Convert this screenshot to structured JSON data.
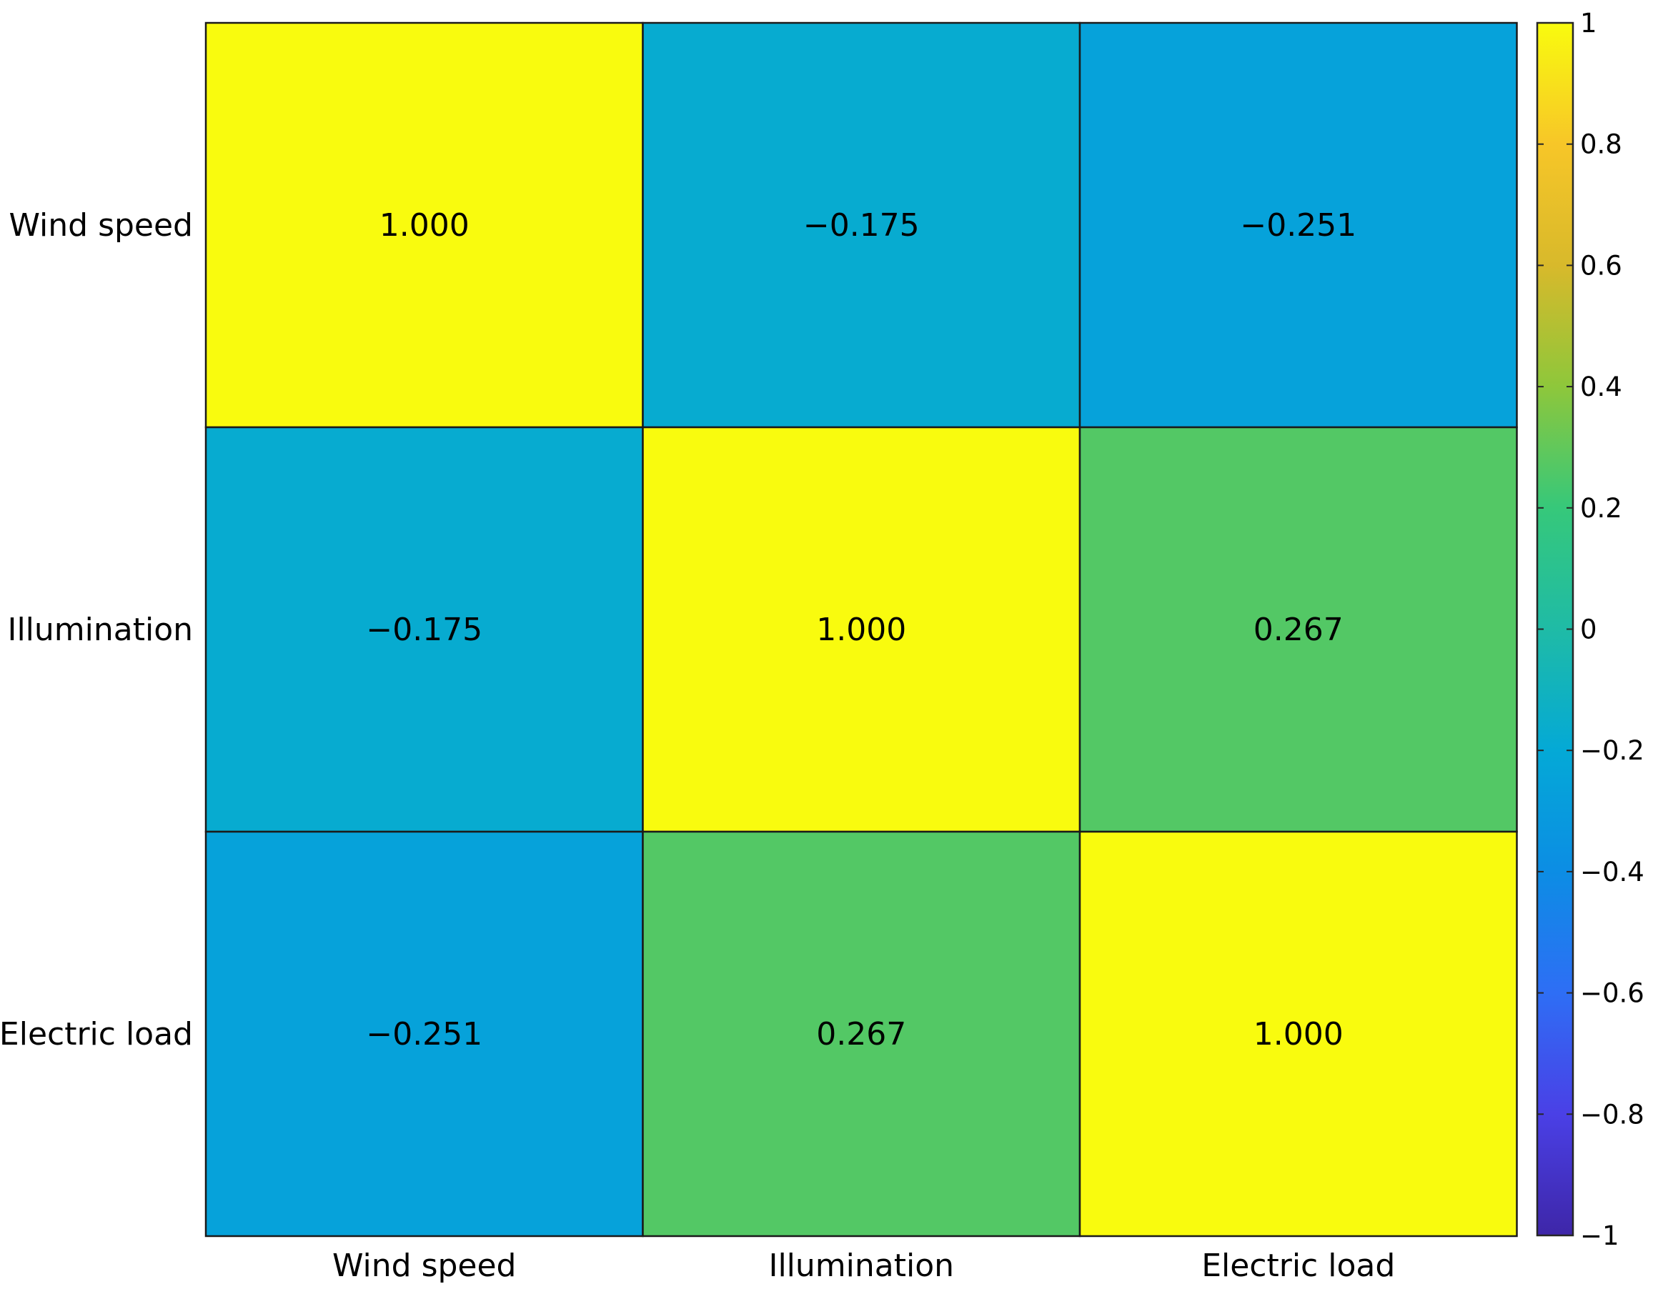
{
  "chart_data": {
    "type": "heatmap",
    "row_labels": [
      "Wind speed",
      "Illumination",
      "Electric load"
    ],
    "col_labels": [
      "Wind speed",
      "Illumination",
      "Electric load"
    ],
    "values": [
      [
        1.0,
        -0.175,
        -0.251
      ],
      [
        -0.175,
        1.0,
        0.267
      ],
      [
        -0.251,
        0.267,
        1.0
      ]
    ],
    "cell_text": [
      [
        "1.000",
        "−0.175",
        "−0.251"
      ],
      [
        "−0.175",
        "1.000",
        "0.267"
      ],
      [
        "−0.251",
        "0.267",
        "1.000"
      ]
    ],
    "colorbar": {
      "range": [
        -1,
        1
      ],
      "ticks": [
        1,
        0.8,
        0.6,
        0.4,
        0.2,
        0,
        -0.2,
        -0.4,
        -0.6,
        -0.8,
        -1
      ],
      "tick_labels": [
        "1",
        "0.8",
        "0.6",
        "0.4",
        "0.2",
        "0",
        "−0.2",
        "−0.4",
        "−0.6",
        "−0.8",
        "−1"
      ],
      "colormap": "parula"
    },
    "colors": {
      "colormap_stops": [
        "#3e26a8",
        "#4a40e6",
        "#2e6ef5",
        "#0c8de4",
        "#04a9d6",
        "#1fbba6",
        "#36c87a",
        "#8ec73b",
        "#d8b92b",
        "#f7c628",
        "#f9fb0e"
      ],
      "cell_border": "#1a1a1a",
      "axis": "#262626"
    },
    "grid": false,
    "legend": "colorbar right"
  }
}
